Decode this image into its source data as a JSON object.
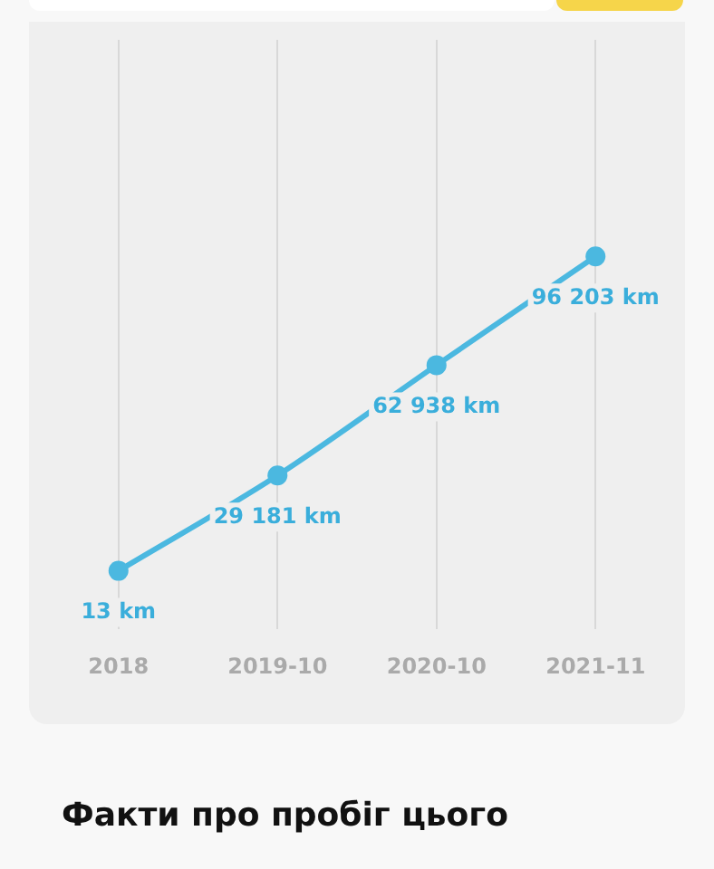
{
  "chart_data": {
    "type": "line",
    "categories": [
      "2018",
      "2019-10",
      "2020-10",
      "2021-11"
    ],
    "series": [
      {
        "color": "#4bb8e0",
        "values": [
          13,
          29181,
          62938,
          96203
        ],
        "value_labels": [
          "13 km",
          "29 181 km",
          "62 938 km",
          "96 203 km"
        ]
      }
    ],
    "marker": "circle",
    "line_style": "solid",
    "grid": "x",
    "tick_labels": "x",
    "legend": false,
    "annotations": [
      "Факти про пробіг цього"
    ]
  }
}
